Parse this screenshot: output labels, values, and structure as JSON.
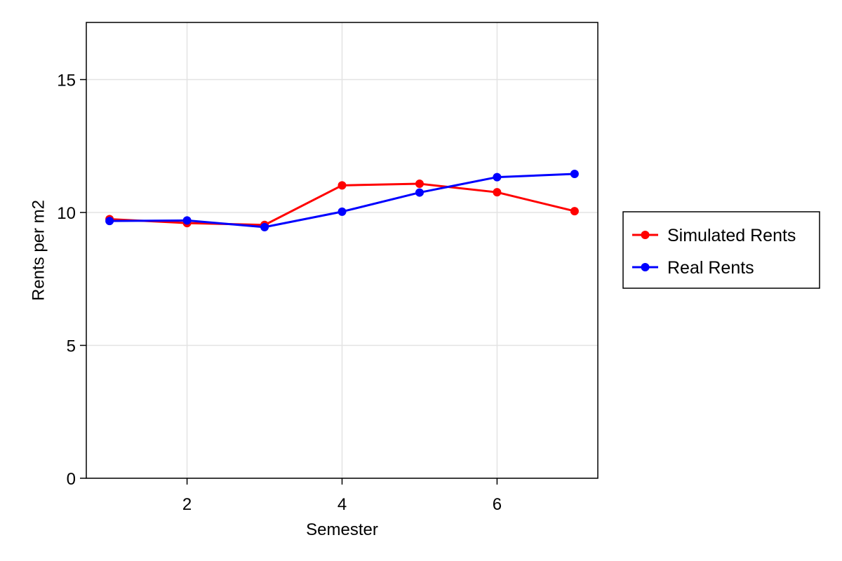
{
  "chart_data": {
    "type": "line",
    "title": "",
    "xlabel": "Semester",
    "ylabel": "Rents per m2",
    "x": [
      1,
      2,
      3,
      4,
      5,
      6,
      7
    ],
    "series": [
      {
        "name": "Simulated Rents",
        "color": "#ff0000",
        "values": [
          9.75,
          9.6,
          9.53,
          11.02,
          11.08,
          10.76,
          10.05
        ]
      },
      {
        "name": "Real Rents",
        "color": "#0000ff",
        "values": [
          9.68,
          9.7,
          9.45,
          10.03,
          10.75,
          11.33,
          11.45
        ]
      }
    ],
    "xlim": [
      0.7,
      7.3
    ],
    "ylim": [
      0,
      17.15
    ],
    "xticks": [
      2,
      4,
      6
    ],
    "xtick_labels": [
      "2",
      "4",
      "6"
    ],
    "yticks": [
      0,
      5,
      10,
      15
    ],
    "ytick_labels": [
      "0",
      "5",
      "10",
      "15"
    ],
    "grid": true,
    "legend_position": "right"
  }
}
